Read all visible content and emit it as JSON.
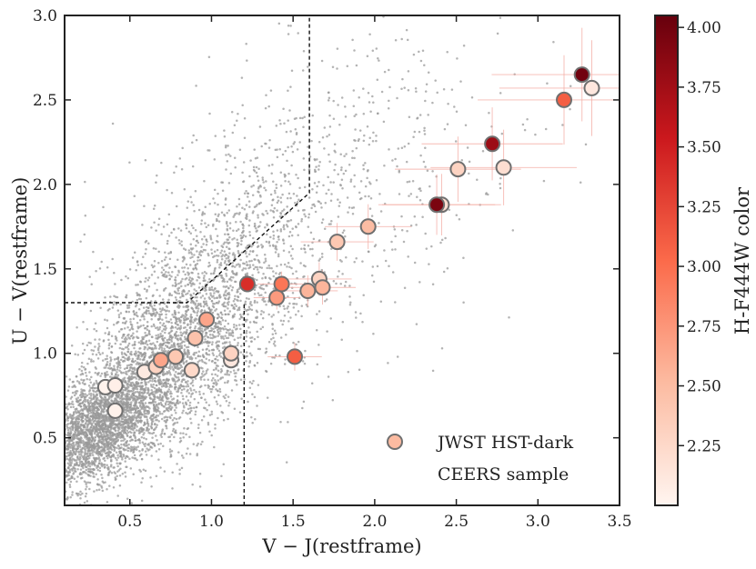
{
  "chart_data": {
    "type": "scatter",
    "xlabel": "V − J(restframe)",
    "ylabel": "U − V(restframe)",
    "xlim": [
      0.1,
      3.5
    ],
    "ylim": [
      0.1,
      3.0
    ],
    "xticks": [
      0.5,
      1.0,
      1.5,
      2.0,
      2.5,
      3.0,
      3.5
    ],
    "xtick_labels": [
      "0.5",
      "1.0",
      "1.5",
      "2.0",
      "2.5",
      "3.0",
      "3.5"
    ],
    "yticks": [
      0.5,
      1.0,
      1.5,
      2.0,
      2.5,
      3.0
    ],
    "ytick_labels": [
      "0.5",
      "1.0",
      "1.5",
      "2.0",
      "2.5",
      "3.0"
    ],
    "legend": {
      "position": "bottom-right",
      "entries": [
        {
          "label": "JWST HST-dark",
          "marker": "circle"
        },
        {
          "label": "CEERS sample",
          "marker": "none"
        }
      ]
    },
    "colorbar": {
      "label": "H-F444W color",
      "range": [
        2.0,
        4.05
      ],
      "ticks": [
        2.25,
        2.5,
        2.75,
        3.0,
        3.25,
        3.5,
        3.75,
        4.0
      ],
      "tick_labels": [
        "2.25",
        "2.50",
        "2.75",
        "3.00",
        "3.25",
        "3.50",
        "3.75",
        "4.00"
      ],
      "colors_low_to_high": [
        "#fff5f0",
        "#fcbba1",
        "#fb6a4a",
        "#cb181d",
        "#67000d"
      ]
    },
    "selection_boundary": [
      [
        0.1,
        1.3
      ],
      [
        0.85,
        1.3
      ],
      [
        1.6,
        1.95
      ],
      [
        1.6,
        3.0
      ]
    ],
    "selection_vertical": [
      [
        1.2,
        0.1
      ],
      [
        1.2,
        1.3
      ]
    ],
    "background_sample": {
      "name": "CEERS sample",
      "color": "#9a9a9a"
    },
    "series": [
      {
        "name": "JWST HST-dark",
        "points": [
          {
            "x": 0.35,
            "y": 0.8,
            "c": 2.02
          },
          {
            "x": 0.41,
            "y": 0.81,
            "c": 2.05
          },
          {
            "x": 0.41,
            "y": 0.66,
            "c": 2.03
          },
          {
            "x": 0.59,
            "y": 0.89,
            "c": 2.1
          },
          {
            "x": 0.66,
            "y": 0.92,
            "c": 2.3
          },
          {
            "x": 0.69,
            "y": 0.96,
            "c": 2.65
          },
          {
            "x": 0.78,
            "y": 0.98,
            "c": 2.4
          },
          {
            "x": 0.88,
            "y": 0.9,
            "c": 2.25
          },
          {
            "x": 0.9,
            "y": 1.09,
            "c": 2.45
          },
          {
            "x": 0.97,
            "y": 1.2,
            "c": 2.65
          },
          {
            "x": 1.12,
            "y": 0.96,
            "c": 2.12
          },
          {
            "x": 1.12,
            "y": 1.0,
            "c": 2.3
          },
          {
            "x": 1.22,
            "y": 1.41,
            "c": 3.4
          },
          {
            "x": 1.4,
            "y": 1.33,
            "c": 2.72
          },
          {
            "x": 1.43,
            "y": 1.41,
            "c": 2.95
          },
          {
            "x": 1.51,
            "y": 0.98,
            "c": 3.1
          },
          {
            "x": 1.59,
            "y": 1.37,
            "c": 2.55
          },
          {
            "x": 1.66,
            "y": 1.44,
            "c": 2.3
          },
          {
            "x": 1.68,
            "y": 1.39,
            "c": 2.55
          },
          {
            "x": 1.77,
            "y": 1.66,
            "c": 2.4
          },
          {
            "x": 1.96,
            "y": 1.75,
            "c": 2.5
          },
          {
            "x": 2.41,
            "y": 1.88,
            "c": 2.2
          },
          {
            "x": 2.38,
            "y": 1.88,
            "c": 3.95
          },
          {
            "x": 2.51,
            "y": 2.09,
            "c": 2.3
          },
          {
            "x": 2.72,
            "y": 2.24,
            "c": 3.78
          },
          {
            "x": 2.79,
            "y": 2.1,
            "c": 2.2
          },
          {
            "x": 3.16,
            "y": 2.5,
            "c": 3.1
          },
          {
            "x": 3.27,
            "y": 2.65,
            "c": 4.0
          },
          {
            "x": 3.33,
            "y": 2.57,
            "c": 2.12
          }
        ]
      }
    ]
  }
}
